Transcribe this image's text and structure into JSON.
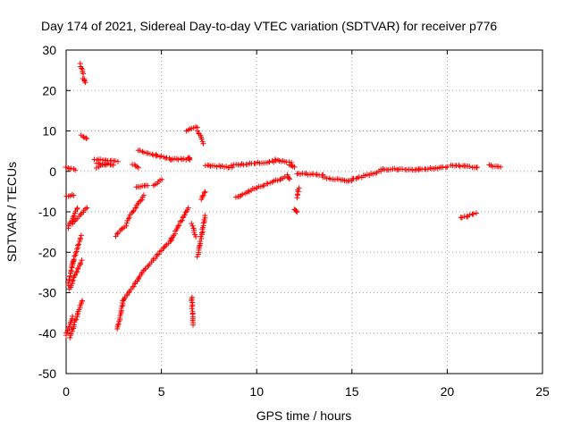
{
  "chart_data": {
    "type": "scatter",
    "title": "Day 174 of 2021, Sidereal Day-to-day VTEC variation (SDTVAR) for receiver p776",
    "xlabel": "GPS time / hours",
    "ylabel": "SDTVAR / TECUs",
    "xlim": [
      0,
      25
    ],
    "ylim": [
      -50,
      30
    ],
    "xticks": [
      0,
      5,
      10,
      15,
      20,
      25
    ],
    "yticks": [
      -50,
      -40,
      -30,
      -20,
      -10,
      0,
      10,
      20,
      30
    ],
    "grid": true,
    "marker": "+",
    "marker_color": "#ff0000",
    "series": [
      {
        "name": "p776",
        "segments": [
          [
            0.0,
            -40.5,
            0.35,
            -36
          ],
          [
            0.1,
            -28,
            0.4,
            -22
          ],
          [
            0.1,
            -14,
            0.6,
            -9
          ],
          [
            0.0,
            -6,
            0.4,
            -6
          ],
          [
            0.0,
            1,
            0.5,
            0.5
          ],
          [
            0.2,
            -41,
            0.85,
            -32
          ],
          [
            0.2,
            -29,
            0.8,
            -22
          ],
          [
            0.3,
            -23,
            0.8,
            -16
          ],
          [
            0.3,
            -13,
            1.1,
            -9
          ],
          [
            0.75,
            26.5,
            0.9,
            24
          ],
          [
            0.9,
            23,
            1.0,
            22
          ],
          [
            0.8,
            9,
            1.1,
            8
          ],
          [
            1.5,
            3,
            2.7,
            2.5
          ],
          [
            1.6,
            2,
            2.5,
            1.5
          ],
          [
            1.6,
            1,
            2.2,
            2
          ],
          [
            2.6,
            -16,
            3.2,
            -13
          ],
          [
            3.2,
            -12,
            4.1,
            -6
          ],
          [
            2.7,
            -39,
            3.0,
            -32
          ],
          [
            3.0,
            -32,
            4.0,
            -25
          ],
          [
            4.0,
            -25,
            5.5,
            -17
          ],
          [
            5.5,
            -17,
            6.4,
            -9
          ],
          [
            3.5,
            1.8,
            3.8,
            0.8
          ],
          [
            3.7,
            -4,
            4.3,
            -3.5
          ],
          [
            4.6,
            -3.5,
            5.0,
            -2
          ],
          [
            3.8,
            5.2,
            4.7,
            4
          ],
          [
            4.7,
            4,
            5.5,
            3
          ],
          [
            5.5,
            3,
            6.3,
            3
          ],
          [
            6.3,
            10,
            6.9,
            11
          ],
          [
            6.9,
            10,
            7.2,
            7
          ],
          [
            6.6,
            -13,
            6.8,
            -16
          ],
          [
            6.6,
            -31,
            6.65,
            -38
          ],
          [
            6.9,
            -21,
            7.3,
            -11
          ],
          [
            7.1,
            -7,
            7.3,
            -5
          ],
          [
            6.4,
            3.5,
            6.5,
            3
          ],
          [
            7.3,
            1.5,
            8.7,
            1
          ],
          [
            8.7,
            1.5,
            11.0,
            2.5
          ],
          [
            11.0,
            3,
            11.8,
            2
          ],
          [
            8.9,
            -6.5,
            10.0,
            -4
          ],
          [
            10.0,
            -4,
            11.5,
            -1.5
          ],
          [
            11.7,
            1.5,
            12.0,
            1.2
          ],
          [
            12.1,
            -6.5,
            12.2,
            -4
          ],
          [
            12.0,
            -9.5,
            12.1,
            -10
          ],
          [
            11.6,
            -1,
            11.7,
            -2
          ],
          [
            12.1,
            -0.5,
            13.5,
            -1
          ],
          [
            13.5,
            -1.5,
            15.0,
            -2.5
          ],
          [
            15.0,
            -2,
            16.5,
            0
          ],
          [
            16.5,
            0.5,
            18.5,
            0.5
          ],
          [
            18.5,
            0.5,
            20.0,
            1
          ],
          [
            20.2,
            1.5,
            21.6,
            1
          ],
          [
            20.7,
            -11.5,
            21.5,
            -10.5
          ],
          [
            22.2,
            1.5,
            22.8,
            1
          ]
        ]
      }
    ]
  }
}
